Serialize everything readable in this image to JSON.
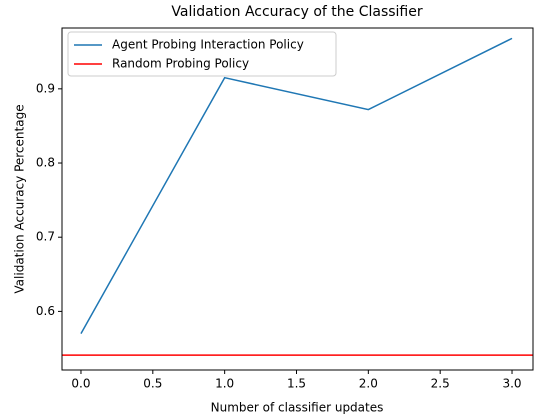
{
  "chart_data": {
    "type": "line",
    "title": "Validation Accuracy of the Classifier",
    "x_label": "Number of classifier updates",
    "y_label": "Validation Accuracy Percentage",
    "series": [
      {
        "name": "Agent Probing Interaction Policy",
        "color": "#1f77b4",
        "x": [
          0,
          1,
          2,
          3
        ],
        "values": [
          0.57,
          0.915,
          0.872,
          0.968
        ]
      }
    ],
    "hlines": [
      {
        "name": "Random Probing Policy",
        "color": "#ff0000",
        "value": 0.541
      }
    ],
    "xlim": [
      -0.132,
      3.146
    ],
    "ylim": [
      0.521,
      0.982
    ],
    "xticks": [
      {
        "value": 0,
        "label": "0.0"
      },
      0.5,
      {
        "value": 1,
        "label": "1.0"
      },
      1.5,
      {
        "value": 2,
        "label": "2.0"
      },
      2.5,
      {
        "value": 3,
        "label": "3.0"
      }
    ],
    "yticks": [
      0.6,
      0.7,
      0.8,
      0.9
    ],
    "legend": "upper left"
  }
}
